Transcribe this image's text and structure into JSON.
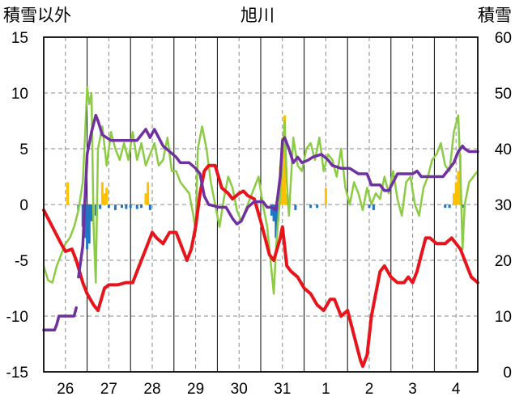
{
  "chart_data": {
    "type": "line",
    "title": "旭川",
    "ylabel_left": "積雪以外",
    "ylabel_right": "積雪",
    "ylim_left": [
      -15,
      15
    ],
    "ylim_right": [
      0,
      60
    ],
    "y_ticks_left": [
      "15",
      "10",
      "5",
      "0",
      "-5",
      "-10",
      "-15"
    ],
    "y_ticks_right": [
      "60",
      "50",
      "40",
      "30",
      "20",
      "10",
      "0"
    ],
    "x_day_labels": [
      "26",
      "27",
      "28",
      "29",
      "30",
      "31",
      "1",
      "2",
      "3",
      "4"
    ],
    "grid": true,
    "colors": {
      "temperature": "#e8141c",
      "wind": "#8ccb44",
      "snow_depth": "#7030a0",
      "precip_positive": "#ffc000",
      "precip_negative": "#1f77c4"
    },
    "series": [
      {
        "key": "temperature",
        "axis": "left",
        "values": [
          [
            25.5,
            -0.5
          ],
          [
            25.7,
            -2.0
          ],
          [
            25.9,
            -3.5
          ],
          [
            26.0,
            -4.2
          ],
          [
            26.15,
            -4.0
          ],
          [
            26.25,
            -5.0
          ],
          [
            26.4,
            -7.0
          ],
          [
            26.5,
            -8.0
          ],
          [
            26.65,
            -9.0
          ],
          [
            26.75,
            -9.5
          ],
          [
            26.9,
            -7.5
          ],
          [
            27.0,
            -7.2
          ],
          [
            27.2,
            -7.2
          ],
          [
            27.4,
            -7.0
          ],
          [
            27.55,
            -7.0
          ],
          [
            27.7,
            -5.5
          ],
          [
            27.85,
            -4.0
          ],
          [
            28.0,
            -2.5
          ],
          [
            28.1,
            -3.0
          ],
          [
            28.25,
            -3.5
          ],
          [
            28.4,
            -2.5
          ],
          [
            28.55,
            -2.5
          ],
          [
            28.7,
            -4.0
          ],
          [
            28.8,
            -5.0
          ],
          [
            28.9,
            -4.0
          ],
          [
            29.0,
            -2.0
          ],
          [
            29.1,
            1.0
          ],
          [
            29.2,
            3.0
          ],
          [
            29.3,
            3.5
          ],
          [
            29.45,
            3.5
          ],
          [
            29.6,
            1.5
          ],
          [
            29.75,
            1.0
          ],
          [
            29.85,
            0.5
          ],
          [
            30.0,
            1.0
          ],
          [
            30.1,
            1.2
          ],
          [
            30.2,
            0.8
          ],
          [
            30.35,
            0.5
          ],
          [
            30.5,
            -1.5
          ],
          [
            30.6,
            -3.0
          ],
          [
            30.7,
            -4.5
          ],
          [
            30.8,
            -5.0
          ],
          [
            30.95,
            -3.0
          ],
          [
            31.0,
            -2.0
          ],
          [
            31.1,
            -5.5
          ],
          [
            31.2,
            -6.0
          ],
          [
            31.35,
            -6.5
          ],
          [
            31.5,
            -7.5
          ],
          [
            31.65,
            -8.0
          ],
          [
            31.8,
            -9.0
          ],
          [
            31.95,
            -9.5
          ],
          [
            32.1,
            -8.5
          ],
          [
            32.2,
            -8.5
          ],
          [
            32.35,
            -10.0
          ],
          [
            32.5,
            -9.5
          ],
          [
            32.6,
            -11.0
          ],
          [
            32.7,
            -12.5
          ],
          [
            32.8,
            -14.0
          ],
          [
            32.85,
            -14.5
          ],
          [
            32.95,
            -13.5
          ],
          [
            33.05,
            -10.0
          ],
          [
            33.15,
            -8.0
          ],
          [
            33.25,
            -6.0
          ],
          [
            33.35,
            -5.5
          ],
          [
            33.5,
            -6.5
          ],
          [
            33.65,
            -7.0
          ],
          [
            33.8,
            -7.0
          ],
          [
            33.9,
            -6.5
          ],
          [
            34.0,
            -7.0
          ],
          [
            34.1,
            -6.0
          ],
          [
            34.2,
            -4.5
          ],
          [
            34.3,
            -3.0
          ],
          [
            34.4,
            -3.0
          ],
          [
            34.55,
            -3.5
          ],
          [
            34.75,
            -3.5
          ],
          [
            34.9,
            -3.0
          ],
          [
            35.0,
            -3.5
          ],
          [
            35.1,
            -4.0
          ],
          [
            35.25,
            -5.5
          ],
          [
            35.35,
            -6.5
          ],
          [
            35.5,
            -7.0
          ]
        ]
      },
      {
        "key": "wind",
        "axis": "left",
        "values": [
          [
            25.5,
            -5.5
          ],
          [
            25.6,
            -6.8
          ],
          [
            25.7,
            -7.0
          ],
          [
            25.8,
            -5.5
          ],
          [
            25.9,
            -4.5
          ],
          [
            26.0,
            -3.5
          ],
          [
            26.1,
            -3.0
          ],
          [
            26.2,
            -2.0
          ],
          [
            26.3,
            -0.5
          ],
          [
            26.4,
            2.0
          ],
          [
            26.45,
            6.0
          ],
          [
            26.5,
            10.5
          ],
          [
            26.55,
            9.0
          ],
          [
            26.6,
            10.0
          ],
          [
            26.65,
            -2.0
          ],
          [
            26.7,
            -7.0
          ],
          [
            26.75,
            5.0
          ],
          [
            26.85,
            7.0
          ],
          [
            26.95,
            3.5
          ],
          [
            27.05,
            6.5
          ],
          [
            27.15,
            5.0
          ],
          [
            27.25,
            4.0
          ],
          [
            27.35,
            5.5
          ],
          [
            27.45,
            4.0
          ],
          [
            27.55,
            6.5
          ],
          [
            27.65,
            4.0
          ],
          [
            27.75,
            5.5
          ],
          [
            27.85,
            3.5
          ],
          [
            27.95,
            4.5
          ],
          [
            28.05,
            5.5
          ],
          [
            28.15,
            3.5
          ],
          [
            28.25,
            4.0
          ],
          [
            28.35,
            6.0
          ],
          [
            28.45,
            3.0
          ],
          [
            28.55,
            3.0
          ],
          [
            28.65,
            2.0
          ],
          [
            28.75,
            1.5
          ],
          [
            28.85,
            1.0
          ],
          [
            28.95,
            -1.0
          ],
          [
            29.0,
            -2.5
          ],
          [
            29.05,
            5.0
          ],
          [
            29.15,
            7.0
          ],
          [
            29.25,
            5.0
          ],
          [
            29.35,
            2.0
          ],
          [
            29.45,
            0.0
          ],
          [
            29.55,
            -2.0
          ],
          [
            29.65,
            0.5
          ],
          [
            29.75,
            2.5
          ],
          [
            29.85,
            1.5
          ],
          [
            29.95,
            -0.5
          ],
          [
            30.05,
            -1.5
          ],
          [
            30.15,
            -0.5
          ],
          [
            30.3,
            1.0
          ],
          [
            30.45,
            2.5
          ],
          [
            30.55,
            0.0
          ],
          [
            30.65,
            -2.0
          ],
          [
            30.75,
            -6.0
          ],
          [
            30.8,
            -8.0
          ],
          [
            30.85,
            -4.0
          ],
          [
            30.95,
            1.0
          ],
          [
            31.05,
            7.5
          ],
          [
            31.1,
            2.0
          ],
          [
            31.15,
            -1.0
          ],
          [
            31.25,
            6.0
          ],
          [
            31.35,
            3.5
          ],
          [
            31.45,
            3.0
          ],
          [
            31.55,
            5.0
          ],
          [
            31.65,
            5.5
          ],
          [
            31.75,
            4.0
          ],
          [
            31.85,
            6.0
          ],
          [
            31.95,
            3.0
          ],
          [
            32.05,
            4.5
          ],
          [
            32.15,
            4.0
          ],
          [
            32.25,
            2.5
          ],
          [
            32.35,
            5.0
          ],
          [
            32.45,
            1.5
          ],
          [
            32.55,
            0.0
          ],
          [
            32.65,
            2.0
          ],
          [
            32.75,
            1.0
          ],
          [
            32.85,
            -0.5
          ],
          [
            32.95,
            1.5
          ],
          [
            33.05,
            0.0
          ],
          [
            33.15,
            1.0
          ],
          [
            33.25,
            0.5
          ],
          [
            33.35,
            2.5
          ],
          [
            33.45,
            1.0
          ],
          [
            33.55,
            3.0
          ],
          [
            33.65,
            0.5
          ],
          [
            33.75,
            -1.0
          ],
          [
            33.85,
            2.0
          ],
          [
            33.95,
            2.5
          ],
          [
            34.05,
            0.0
          ],
          [
            34.15,
            -1.0
          ],
          [
            34.25,
            1.5
          ],
          [
            34.35,
            2.5
          ],
          [
            34.45,
            4.0
          ],
          [
            34.55,
            4.5
          ],
          [
            34.65,
            5.5
          ],
          [
            34.75,
            3.5
          ],
          [
            34.85,
            3.0
          ],
          [
            34.95,
            6.5
          ],
          [
            35.05,
            8.0
          ],
          [
            35.1,
            3.0
          ],
          [
            35.15,
            -4.0
          ],
          [
            35.2,
            0.0
          ],
          [
            35.3,
            2.0
          ],
          [
            35.4,
            2.5
          ],
          [
            35.5,
            3.0
          ]
        ]
      },
      {
        "key": "snow_depth",
        "axis": "right",
        "segments": [
          [
            [
              25.5,
              7.5
            ],
            [
              25.75,
              7.5
            ],
            [
              25.8,
              8.5
            ],
            [
              25.85,
              10.0
            ],
            [
              26.2,
              10.0
            ],
            [
              26.25,
              11.5
            ]
          ],
          [
            [
              26.3,
              17.0
            ],
            [
              26.4,
              22.5
            ],
            [
              26.5,
              39.0
            ],
            [
              26.6,
              43.0
            ],
            [
              26.7,
              46.0
            ],
            [
              26.75,
              45.0
            ],
            [
              26.85,
              42.5
            ],
            [
              27.05,
              41.5
            ],
            [
              27.65,
              41.5
            ],
            [
              27.75,
              42.5
            ],
            [
              27.85,
              43.5
            ],
            [
              27.95,
              42.0
            ],
            [
              28.05,
              43.5
            ],
            [
              28.15,
              42.0
            ],
            [
              28.25,
              40.5
            ],
            [
              28.55,
              38.5
            ],
            [
              28.65,
              37.5
            ],
            [
              28.85,
              37.5
            ],
            [
              29.0,
              36.5
            ],
            [
              29.1,
              35.5
            ],
            [
              29.2,
              31.5
            ],
            [
              29.3,
              30.0
            ],
            [
              29.55,
              29.5
            ],
            [
              29.7,
              29.5
            ],
            [
              29.85,
              27.5
            ],
            [
              29.95,
              26.5
            ],
            [
              30.05,
              27.0
            ],
            [
              30.2,
              29.5
            ],
            [
              30.35,
              30.5
            ],
            [
              30.55,
              30.5
            ],
            [
              30.65,
              29.5
            ],
            [
              30.75,
              29.5
            ],
            [
              30.85,
              29.0
            ],
            [
              30.95,
              35.0
            ],
            [
              31.0,
              41.5
            ],
            [
              31.05,
              42.0
            ],
            [
              31.15,
              40.0
            ],
            [
              31.25,
              37.5
            ],
            [
              31.35,
              38.5
            ],
            [
              31.45,
              37.5
            ],
            [
              31.6,
              38.0
            ],
            [
              31.7,
              38.5
            ],
            [
              31.9,
              39.0
            ],
            [
              32.05,
              38.0
            ],
            [
              32.15,
              37.0
            ],
            [
              32.35,
              36.5
            ],
            [
              32.55,
              36.5
            ],
            [
              32.75,
              35.5
            ],
            [
              32.95,
              35.5
            ],
            [
              33.05,
              33.5
            ],
            [
              33.25,
              33.5
            ],
            [
              33.35,
              32.5
            ],
            [
              33.45,
              32.5
            ],
            [
              33.55,
              34.0
            ],
            [
              33.65,
              35.5
            ],
            [
              34.0,
              35.5
            ],
            [
              34.1,
              36.0
            ],
            [
              34.2,
              35.0
            ],
            [
              34.5,
              35.0
            ],
            [
              34.7,
              35.0
            ],
            [
              34.85,
              36.5
            ],
            [
              34.95,
              37.5
            ],
            [
              35.05,
              39.5
            ],
            [
              35.15,
              40.5
            ],
            [
              35.2,
              40.0
            ],
            [
              35.3,
              39.5
            ],
            [
              35.5,
              39.5
            ]
          ]
        ]
      }
    ],
    "precip_bars": [
      [
        26.05,
        2.0
      ],
      [
        26.3,
        -0.5
      ],
      [
        26.4,
        -2.0
      ],
      [
        26.45,
        -3.0
      ],
      [
        26.5,
        -4.0
      ],
      [
        26.55,
        -3.5
      ],
      [
        26.6,
        -1.5
      ],
      [
        26.7,
        -1.0
      ],
      [
        26.8,
        -0.4
      ],
      [
        26.85,
        2.0
      ],
      [
        26.9,
        1.0
      ],
      [
        26.95,
        1.5
      ],
      [
        27.0,
        -0.3
      ],
      [
        27.15,
        -0.5
      ],
      [
        27.3,
        -0.3
      ],
      [
        27.4,
        -0.4
      ],
      [
        27.5,
        -0.3
      ],
      [
        27.65,
        -0.4
      ],
      [
        27.75,
        -0.3
      ],
      [
        27.85,
        1.0
      ],
      [
        27.9,
        2.0
      ],
      [
        27.95,
        -0.5
      ],
      [
        30.75,
        -1.0
      ],
      [
        30.8,
        -1.5
      ],
      [
        30.85,
        -3.0
      ],
      [
        30.9,
        -1.5
      ],
      [
        30.95,
        3.5
      ],
      [
        31.0,
        6.0
      ],
      [
        31.05,
        8.0
      ],
      [
        31.1,
        1.0
      ],
      [
        31.15,
        -0.3
      ],
      [
        31.3,
        -0.5
      ],
      [
        31.65,
        -0.3
      ],
      [
        31.8,
        -0.3
      ],
      [
        32.0,
        1.5
      ],
      [
        33.0,
        -0.3
      ],
      [
        33.1,
        -0.5
      ],
      [
        34.75,
        -0.3
      ],
      [
        34.85,
        -0.3
      ],
      [
        34.95,
        1.0
      ],
      [
        35.0,
        2.0
      ],
      [
        35.05,
        3.0
      ],
      [
        35.1,
        4.5
      ],
      [
        35.15,
        -0.3
      ]
    ]
  }
}
